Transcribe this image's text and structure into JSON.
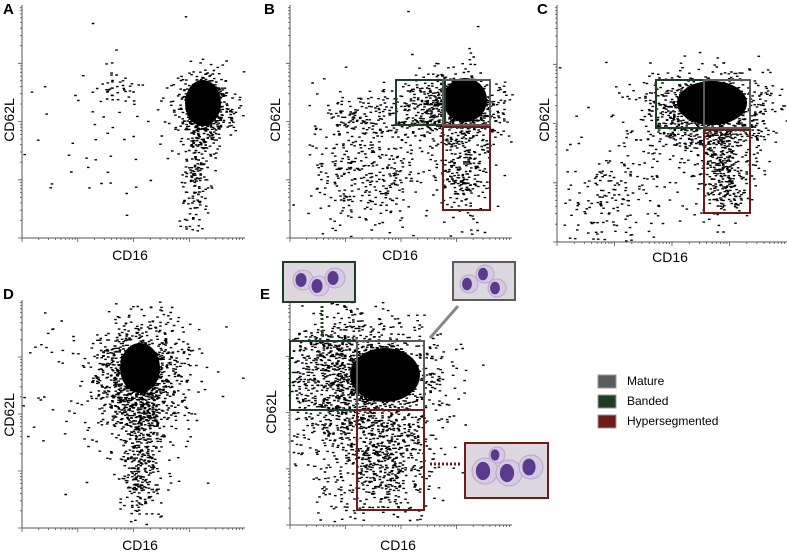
{
  "panels": [
    {
      "letter": "A",
      "x_label": "CD16",
      "y_label": "CD62L"
    },
    {
      "letter": "B",
      "x_label": "CD16",
      "y_label": "CD62L"
    },
    {
      "letter": "C",
      "x_label": "CD16",
      "y_label": "CD62L"
    },
    {
      "letter": "D",
      "x_label": "CD16",
      "y_label": "CD62L"
    },
    {
      "letter": "E",
      "x_label": "CD16",
      "y_label": "CD62L"
    }
  ],
  "legend": [
    {
      "label": "Mature",
      "color": "#5c5c5c"
    },
    {
      "label": "Banded",
      "color": "#1f3d22"
    },
    {
      "label": "Hypersegmented",
      "color": "#701a1a"
    }
  ]
}
